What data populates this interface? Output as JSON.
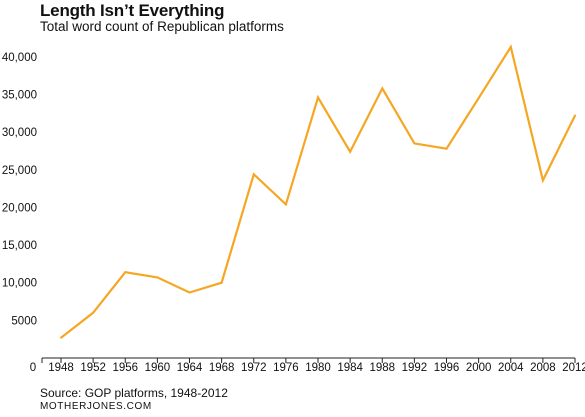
{
  "title": "Length Isn’t Everything",
  "subtitle": "Total word count of Republican platforms",
  "source": "Source: GOP platforms, 1948-2012",
  "credit": "MOTHERJONES.COM",
  "colors": {
    "line": "#f5a623",
    "axis": "#222222"
  },
  "chart_data": {
    "type": "line",
    "title": "Length Isn’t Everything",
    "subtitle": "Total word count of Republican platforms",
    "xlabel": "",
    "ylabel": "",
    "x_ticks": [
      "0",
      "1948",
      "1952",
      "1956",
      "1960",
      "1964",
      "1968",
      "1972",
      "1976",
      "1980",
      "1984",
      "1988",
      "1992",
      "1996",
      "2000",
      "2004",
      "2008",
      "2012"
    ],
    "y_ticks": [
      "5000",
      "10,000",
      "15,000",
      "20,000",
      "25,000",
      "30,000",
      "35,000",
      "40,000"
    ],
    "ylim": [
      0,
      42500
    ],
    "grid": false,
    "legend": "none",
    "series": [
      {
        "x": [
          1948,
          1952,
          1956,
          1960,
          1964,
          1968,
          1972,
          1976,
          1980,
          1984,
          1988,
          1992,
          1996,
          2000,
          2004,
          2008,
          2012
        ],
        "values": [
          2700,
          6000,
          11400,
          10700,
          8700,
          10000,
          24400,
          20400,
          34600,
          27400,
          35800,
          28500,
          27800,
          34500,
          41300,
          23600,
          32200
        ]
      }
    ]
  }
}
